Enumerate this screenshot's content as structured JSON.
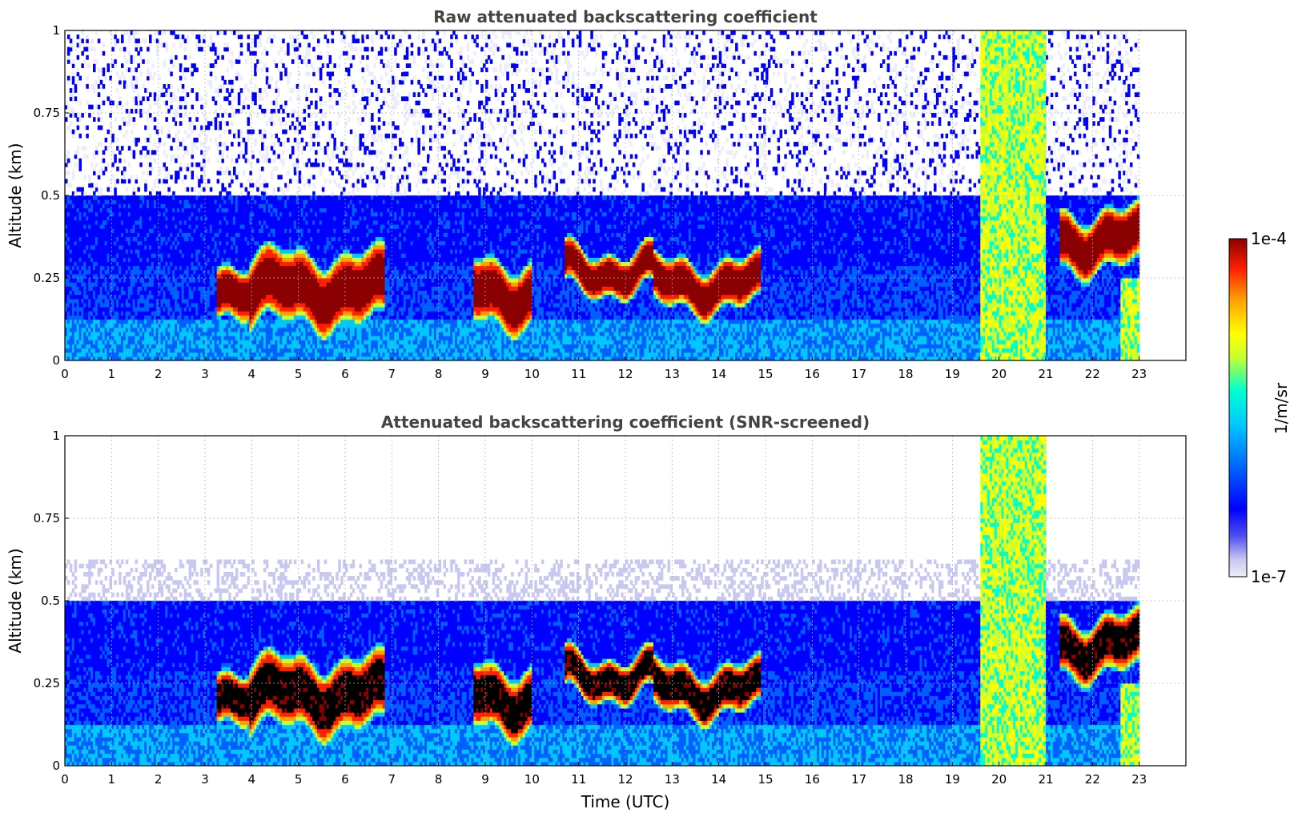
{
  "chart_data": [
    {
      "type": "heatmap",
      "title": "Raw attenuated backscattering coefficient",
      "xlabel": "",
      "ylabel": "Altitude (km)",
      "xlim": [
        0,
        24
      ],
      "ylim": [
        0,
        1
      ],
      "x_ticks": [
        "0",
        "1",
        "2",
        "3",
        "4",
        "5",
        "6",
        "7",
        "8",
        "9",
        "10",
        "11",
        "12",
        "13",
        "14",
        "15",
        "16",
        "17",
        "18",
        "19",
        "20",
        "21",
        "22",
        "23"
      ],
      "y_ticks": [
        "0",
        "0.25",
        "0.5",
        "0.75",
        "1"
      ],
      "grid": true,
      "data_end_time": 23,
      "cloud_layers": [
        {
          "t": [
            3.2,
            3.9
          ],
          "top": 0.3,
          "base": 0.14
        },
        {
          "t": [
            3.9,
            6.8
          ],
          "top": 0.32,
          "base": 0.1
        },
        {
          "t": [
            8.7,
            10.0
          ],
          "top": 0.3,
          "base": 0.1
        },
        {
          "t": [
            10.7,
            12.6
          ],
          "top": 0.33,
          "base": 0.2
        },
        {
          "t": [
            12.6,
            14.9
          ],
          "top": 0.3,
          "base": 0.15
        },
        {
          "t": [
            21.3,
            23.0
          ],
          "top": 0.45,
          "base": 0.27
        }
      ],
      "precip_bands": [
        {
          "t": [
            19.6,
            21.0
          ],
          "top": 1.0
        },
        {
          "t": [
            22.6,
            23.0
          ],
          "top": 0.25
        }
      ]
    },
    {
      "type": "heatmap",
      "title": "Attenuated backscattering coefficient (SNR-screened)",
      "xlabel": "Time (UTC)",
      "ylabel": "Altitude (km)",
      "xlim": [
        0,
        24
      ],
      "ylim": [
        0,
        1
      ],
      "x_ticks": [
        "0",
        "1",
        "2",
        "3",
        "4",
        "5",
        "6",
        "7",
        "8",
        "9",
        "10",
        "11",
        "12",
        "13",
        "14",
        "15",
        "16",
        "17",
        "18",
        "19",
        "20",
        "21",
        "22",
        "23"
      ],
      "y_ticks": [
        "0",
        "0.25",
        "0.5",
        "0.75",
        "1"
      ],
      "grid": true,
      "data_end_time": 23,
      "saturated_color": "#000000"
    }
  ],
  "colorbar": {
    "max_label": "1e-4",
    "min_label": "1e-7",
    "unit_label": "1/m/sr",
    "colormap": "jet-like, lavender at minimum to dark red at maximum",
    "stops": [
      "#ececfa",
      "#c8c8f0",
      "#0000ff",
      "#0060ff",
      "#00c8ff",
      "#00ffd0",
      "#c8ff30",
      "#ffff00",
      "#ffa000",
      "#ff2000",
      "#8b0000"
    ]
  }
}
